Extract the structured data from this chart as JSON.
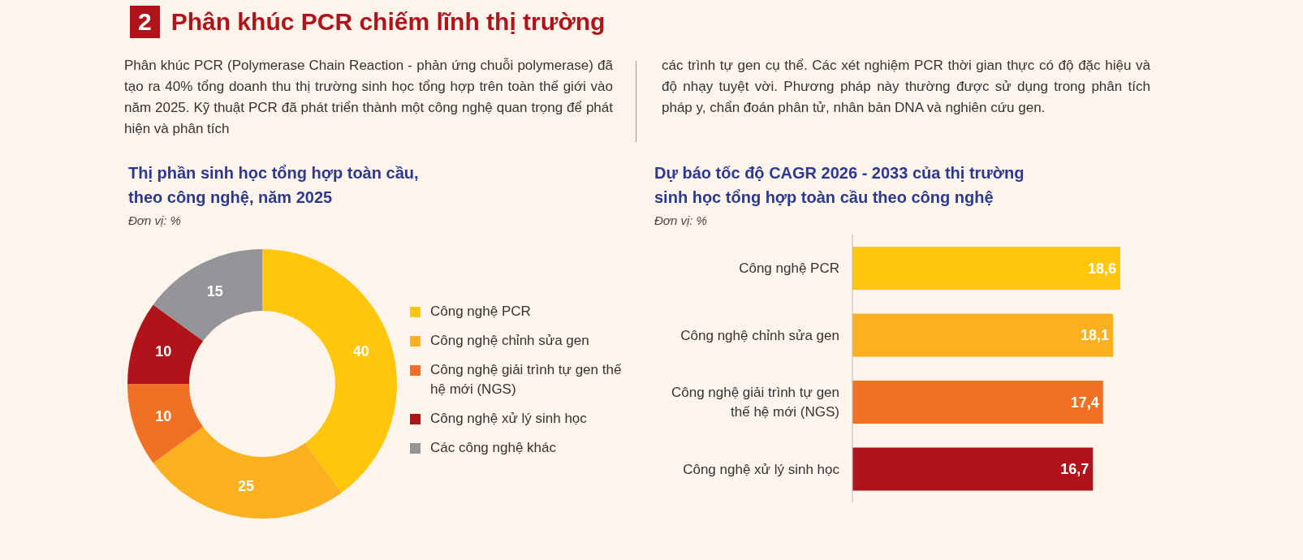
{
  "chart_data": [
    {
      "type": "other",
      "title": "Phân khúc PCR chiếm lĩnh thị trường",
      "annotations": [
        "2",
        "Phân khúc PCR (Polymerase Chain Reaction - phản ứng chuỗi polymerase) đã tạo ra 40% tổng doanh thu thị trường sinh học tổng hợp trên toàn thế giới vào năm 2025. Kỹ thuật PCR đã phát triển thành một công nghệ quan trọng để phát hiện và phân tích",
        "các trình tự gen cụ thể. Các xét nghiệm PCR thời gian thực có độ đặc hiệu và độ nhạy tuyệt vời. Phương pháp này thường được sử dụng trong phân tích pháp y, chẩn đoán phân tử, nhân bản DNA và nghiên cứu gen."
      ]
    },
    {
      "type": "donut",
      "title": "Thị phần sinh học tổng hợp toàn cầu, theo công nghệ, năm 2025",
      "subtitle": "Đơn vị: %",
      "categories": [
        "Công nghệ PCR",
        "Công nghệ chỉnh sửa gen",
        "Công nghệ giải trình tự gen thế hệ mới (NGS)",
        "Công nghệ xử lý sinh học",
        "Các công nghệ khác"
      ],
      "values": [
        40,
        25,
        10,
        10,
        15
      ],
      "colors": [
        "#ffc60b",
        "#fbb01f",
        "#f07124",
        "#b0141a",
        "#939598"
      ],
      "data_labels": true,
      "legend": "right"
    },
    {
      "type": "bar",
      "orientation": "horizontal",
      "title": "Dự báo tốc độ CAGR 2026 - 2033 của thị trường sinh học tổng hợp toàn cầu theo công nghệ",
      "subtitle": "Đơn vị: %",
      "categories": [
        "Công nghệ PCR",
        "Công nghệ chỉnh sửa gen",
        "Công nghệ giải trình tự gen thế hệ mới (NGS)",
        "Công nghệ xử lý sinh học"
      ],
      "values": [
        18.6,
        18.1,
        17.4,
        16.7
      ],
      "colors": [
        "#ffc60b",
        "#fbb01f",
        "#f07124",
        "#b0141a"
      ],
      "value_labels": [
        "18,6",
        "18,1",
        "17,4",
        "16,7"
      ]
    }
  ]
}
